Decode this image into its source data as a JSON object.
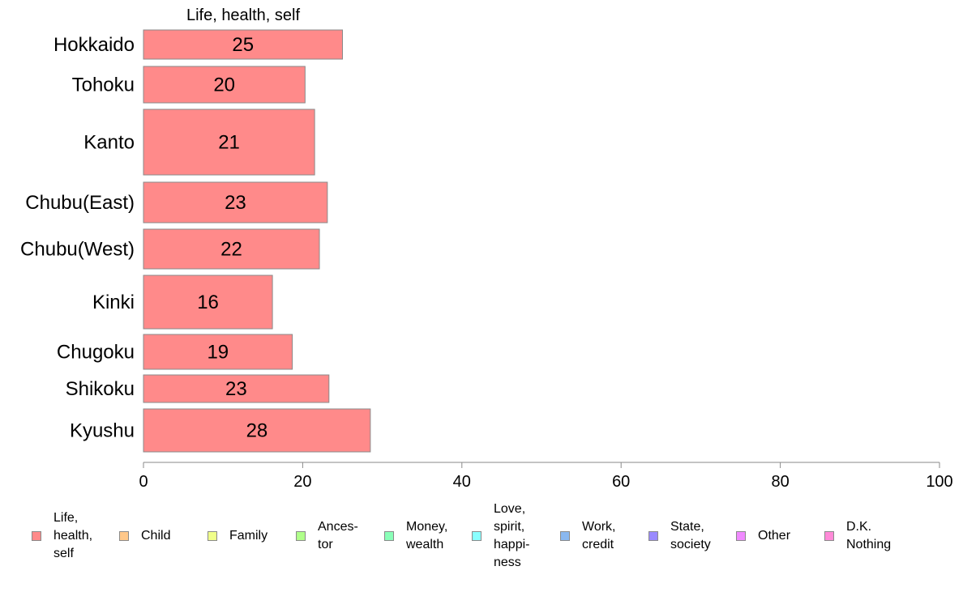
{
  "chart_data": {
    "type": "bar",
    "orientation": "horizontal",
    "title": "Life, health, self",
    "categories": [
      "Hokkaido",
      "Tohoku",
      "Kanto",
      "Chubu(East)",
      "Chubu(West)",
      "Kinki",
      "Chugoku",
      "Shikoku",
      "Kyushu"
    ],
    "series": [
      {
        "name": "Life, health, self",
        "color": "#ff8a8a",
        "values": [
          25,
          20.3,
          21.5,
          23.1,
          22.1,
          16.2,
          18.7,
          23.3,
          28.5
        ],
        "labels": [
          "25",
          "20",
          "21",
          "23",
          "22",
          "16",
          "19",
          "23",
          "28"
        ]
      }
    ],
    "xlim": [
      0,
      100
    ],
    "xticks": [
      0,
      20,
      40,
      60,
      80,
      100
    ],
    "grid": false,
    "legend_position": "bottom"
  },
  "legend": {
    "items": [
      {
        "label": "Life,\nhealth,\nself",
        "color": "#ff8a8a"
      },
      {
        "label": "Child",
        "color": "#ffc88a"
      },
      {
        "label": "Family",
        "color": "#f0ff8a"
      },
      {
        "label": "Ances-\ntor",
        "color": "#b0ff8a"
      },
      {
        "label": "Money,\nwealth",
        "color": "#8affb8"
      },
      {
        "label": "Love,\nspirit,\nhappi-\nness",
        "color": "#8affff"
      },
      {
        "label": "Work,\ncredit",
        "color": "#8ab8f0"
      },
      {
        "label": "State,\nsociety",
        "color": "#9a8aff"
      },
      {
        "label": "Other",
        "color": "#f08aff"
      },
      {
        "label": "D.K.\nNothing",
        "color": "#ff8ad8"
      }
    ]
  }
}
